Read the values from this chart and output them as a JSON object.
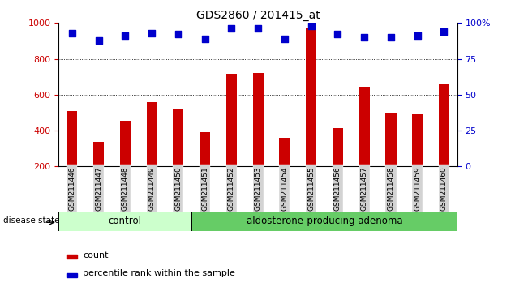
{
  "title": "GDS2860 / 201415_at",
  "samples": [
    "GSM211446",
    "GSM211447",
    "GSM211448",
    "GSM211449",
    "GSM211450",
    "GSM211451",
    "GSM211452",
    "GSM211453",
    "GSM211454",
    "GSM211455",
    "GSM211456",
    "GSM211457",
    "GSM211458",
    "GSM211459",
    "GSM211460"
  ],
  "counts": [
    510,
    335,
    455,
    560,
    520,
    390,
    715,
    720,
    360,
    970,
    415,
    645,
    500,
    490,
    660
  ],
  "percentiles": [
    93,
    88,
    91,
    93,
    92,
    89,
    96,
    96,
    89,
    98,
    92,
    90,
    90,
    91,
    94
  ],
  "ylim_left": [
    200,
    1000
  ],
  "ylim_right": [
    0,
    100
  ],
  "yticks_left": [
    200,
    400,
    600,
    800,
    1000
  ],
  "yticks_right": [
    0,
    25,
    50,
    75,
    100
  ],
  "grid_values": [
    400,
    600,
    800
  ],
  "bar_color": "#cc0000",
  "dot_color": "#0000cc",
  "n_control": 5,
  "n_adenoma": 10,
  "control_label": "control",
  "adenoma_label": "aldosterone-producing adenoma",
  "control_color": "#ccffcc",
  "adenoma_color": "#66cc66",
  "disease_state_label": "disease state",
  "legend_count": "count",
  "legend_percentile": "percentile rank within the sample",
  "bar_width": 0.4,
  "tick_fontsize": 8,
  "title_fontsize": 10,
  "bg_gray": "#d3d3d3"
}
